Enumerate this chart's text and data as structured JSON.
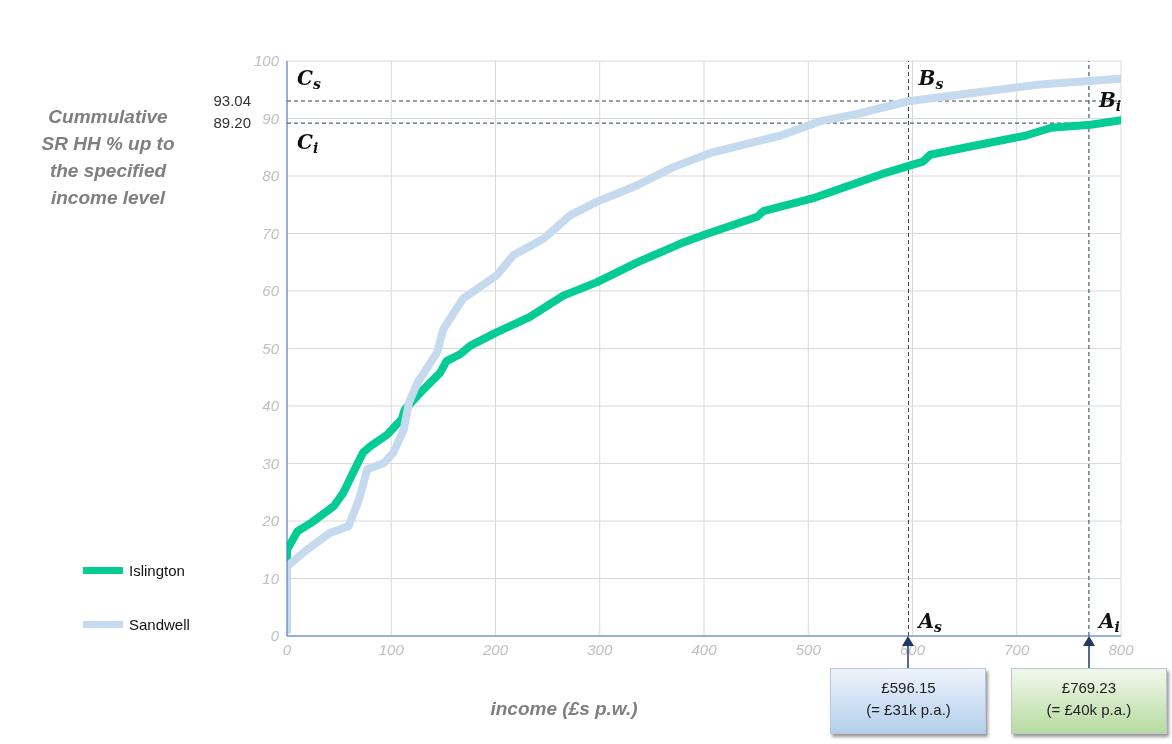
{
  "chart_data": {
    "type": "line",
    "xlabel": "income (£s p.w.)",
    "ylabel": "Cummulative SR HH % up to the specified income level",
    "xlim": [
      0,
      800
    ],
    "xticks": [
      0,
      100,
      200,
      300,
      400,
      500,
      600,
      700,
      800
    ],
    "ylim": [
      0,
      100
    ],
    "yticks": [
      0,
      10,
      20,
      30,
      40,
      50,
      60,
      70,
      80,
      90,
      100
    ],
    "grid": true,
    "legend": "bottom left",
    "marker": "none",
    "line_style": "solid",
    "series": [
      {
        "name": "Islington",
        "color": "#05cc95",
        "x": [
          0,
          0,
          10,
          25,
          45,
          54,
          65,
          73,
          80,
          96,
          110,
          113,
          131,
          147,
          153,
          166,
          176,
          201,
          233,
          265,
          297,
          335,
          377,
          399,
          451,
          457,
          504,
          575,
          610,
          617,
          652,
          708,
          733,
          771,
          800
        ],
        "values": [
          1,
          15,
          18.2,
          19.9,
          22.6,
          24.9,
          29,
          31.9,
          33,
          35,
          37.7,
          39.4,
          42.9,
          45.8,
          47.8,
          49,
          50.5,
          52.8,
          55.5,
          59.2,
          61.5,
          64.9,
          68.2,
          69.7,
          72.9,
          73.9,
          76.1,
          80.6,
          82.5,
          83.7,
          85,
          87,
          88.4,
          88.9,
          89.7
        ]
      },
      {
        "name": "Sandwell",
        "color": "#c5d9ef",
        "x": [
          0,
          0,
          19,
          41,
          59,
          69,
          77,
          93,
          102,
          112,
          117,
          125,
          144,
          150,
          169,
          201,
          217,
          246,
          272,
          297,
          335,
          370,
          406,
          473,
          511,
          547,
          596,
          652,
          722,
          800
        ],
        "values": [
          1,
          12.1,
          15,
          17.9,
          19.1,
          23.7,
          29,
          30.1,
          31.9,
          35.9,
          40.6,
          44,
          49.3,
          53.4,
          58.7,
          62.7,
          66.2,
          69.1,
          73.2,
          75.5,
          78.3,
          81.5,
          84,
          87,
          89.5,
          90.8,
          93,
          94.3,
          95.9,
          96.9
        ]
      }
    ],
    "ref_lines": [
      {
        "axis": "y",
        "value": 93.04,
        "label": "93.04",
        "color": "#404040",
        "line_style": "dashed"
      },
      {
        "axis": "y",
        "value": 89.2,
        "label": "89.20",
        "color": "#1f3864",
        "line_style": "dashed"
      },
      {
        "axis": "x",
        "value": 596.15,
        "label": "£596.15\n(= £31k p.a.)",
        "color": "#404040",
        "line_style": "dashed"
      },
      {
        "axis": "x",
        "value": 769.23,
        "label": "£769.23\n(= £40k p.a.)",
        "color": "#1f3864",
        "line_style": "dashed"
      }
    ],
    "annotations": [
      {
        "text": "C$_{s}$",
        "x": 0,
        "y": 93.04
      },
      {
        "text": "C$_{i}$",
        "x": 0,
        "y": 89.2
      },
      {
        "text": "B$_{s}$",
        "x": 596.15,
        "y": 93.04
      },
      {
        "text": "B$_{i}$",
        "x": 769.23,
        "y": 89.2
      },
      {
        "text": "A$_{s}$",
        "x": 596.15,
        "y": 0
      },
      {
        "text": "A$_{i}$",
        "x": 769.23,
        "y": 0
      }
    ]
  }
}
